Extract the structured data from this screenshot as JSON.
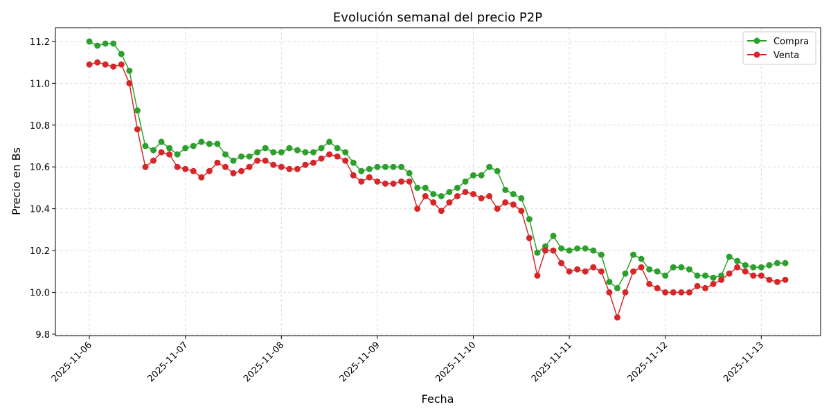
{
  "chart_data": {
    "type": "line",
    "title": "Evolución semanal del precio P2P",
    "xlabel": "Fecha",
    "ylabel": "Precio en Bs",
    "xlim": [
      "2025-11-05T15:30",
      "2025-11-13T14:50"
    ],
    "ylim": [
      9.793,
      11.266
    ],
    "x_ticks": [
      "2025-11-06",
      "2025-11-07",
      "2025-11-08",
      "2025-11-09",
      "2025-11-10",
      "2025-11-11",
      "2025-11-12",
      "2025-11-13"
    ],
    "y_ticks": [
      "9.8",
      "10.0",
      "10.2",
      "10.4",
      "10.6",
      "10.8",
      "11.0",
      "11.2"
    ],
    "grid": true,
    "legend_position": "top-right",
    "x": [
      "2025-11-06T00:00",
      "2025-11-06T02:00",
      "2025-11-06T04:00",
      "2025-11-06T06:00",
      "2025-11-06T08:00",
      "2025-11-06T10:00",
      "2025-11-06T12:00",
      "2025-11-06T14:00",
      "2025-11-06T16:00",
      "2025-11-06T18:00",
      "2025-11-06T20:00",
      "2025-11-06T22:00",
      "2025-11-07T00:00",
      "2025-11-07T02:00",
      "2025-11-07T04:00",
      "2025-11-07T06:00",
      "2025-11-07T08:00",
      "2025-11-07T10:00",
      "2025-11-07T12:00",
      "2025-11-07T14:00",
      "2025-11-07T16:00",
      "2025-11-07T18:00",
      "2025-11-07T20:00",
      "2025-11-07T22:00",
      "2025-11-08T00:00",
      "2025-11-08T02:00",
      "2025-11-08T04:00",
      "2025-11-08T06:00",
      "2025-11-08T08:00",
      "2025-11-08T10:00",
      "2025-11-08T12:00",
      "2025-11-08T14:00",
      "2025-11-08T16:00",
      "2025-11-08T18:00",
      "2025-11-08T20:00",
      "2025-11-08T22:00",
      "2025-11-09T00:00",
      "2025-11-09T02:00",
      "2025-11-09T04:00",
      "2025-11-09T06:00",
      "2025-11-09T08:00",
      "2025-11-09T10:00",
      "2025-11-09T12:00",
      "2025-11-09T14:00",
      "2025-11-09T16:00",
      "2025-11-09T18:00",
      "2025-11-09T20:00",
      "2025-11-09T22:00",
      "2025-11-10T00:00",
      "2025-11-10T02:00",
      "2025-11-10T04:00",
      "2025-11-10T06:00",
      "2025-11-10T08:00",
      "2025-11-10T10:00",
      "2025-11-10T12:00",
      "2025-11-10T14:00",
      "2025-11-10T16:00",
      "2025-11-10T18:00",
      "2025-11-10T20:00",
      "2025-11-10T22:00",
      "2025-11-11T00:00",
      "2025-11-11T02:00",
      "2025-11-11T04:00",
      "2025-11-11T06:00",
      "2025-11-11T08:00",
      "2025-11-11T10:00",
      "2025-11-11T12:00",
      "2025-11-11T14:00",
      "2025-11-11T16:00",
      "2025-11-11T18:00",
      "2025-11-11T20:00",
      "2025-11-11T22:00",
      "2025-11-12T00:00",
      "2025-11-12T02:00",
      "2025-11-12T04:00",
      "2025-11-12T06:00",
      "2025-11-12T08:00",
      "2025-11-12T10:00",
      "2025-11-12T12:00",
      "2025-11-12T14:00",
      "2025-11-12T16:00",
      "2025-11-12T18:00",
      "2025-11-12T20:00",
      "2025-11-12T22:00",
      "2025-11-13T00:00",
      "2025-11-13T02:00",
      "2025-11-13T04:00",
      "2025-11-13T06:00"
    ],
    "series": [
      {
        "name": "Compra",
        "color": "#2ca02c",
        "values": [
          11.2,
          11.18,
          11.19,
          11.19,
          11.14,
          11.06,
          10.87,
          10.7,
          10.68,
          10.72,
          10.69,
          10.66,
          10.69,
          10.7,
          10.72,
          10.71,
          10.71,
          10.66,
          10.63,
          10.65,
          10.65,
          10.67,
          10.69,
          10.67,
          10.67,
          10.69,
          10.68,
          10.67,
          10.67,
          10.69,
          10.72,
          10.69,
          10.67,
          10.62,
          10.58,
          10.59,
          10.6,
          10.6,
          10.6,
          10.6,
          10.57,
          10.5,
          10.5,
          10.47,
          10.46,
          10.48,
          10.5,
          10.53,
          10.56,
          10.56,
          10.6,
          10.58,
          10.49,
          10.47,
          10.45,
          10.35,
          10.19,
          10.22,
          10.27,
          10.21,
          10.2,
          10.21,
          10.21,
          10.2,
          10.18,
          10.05,
          10.02,
          10.09,
          10.18,
          10.16,
          10.11,
          10.1,
          10.08,
          10.12,
          10.12,
          10.11,
          10.08,
          10.08,
          10.07,
          10.08,
          10.17,
          10.15,
          10.13,
          10.12,
          10.12,
          10.13,
          10.14,
          10.14
        ]
      },
      {
        "name": "Venta",
        "color": "#d62728",
        "values": [
          11.09,
          11.1,
          11.09,
          11.08,
          11.09,
          11.0,
          10.78,
          10.6,
          10.63,
          10.67,
          10.66,
          10.6,
          10.59,
          10.58,
          10.55,
          10.58,
          10.62,
          10.6,
          10.57,
          10.58,
          10.6,
          10.63,
          10.63,
          10.61,
          10.6,
          10.59,
          10.59,
          10.61,
          10.62,
          10.64,
          10.66,
          10.65,
          10.63,
          10.56,
          10.53,
          10.55,
          10.53,
          10.52,
          10.52,
          10.53,
          10.53,
          10.4,
          10.46,
          10.43,
          10.39,
          10.43,
          10.46,
          10.48,
          10.47,
          10.45,
          10.46,
          10.4,
          10.43,
          10.42,
          10.39,
          10.26,
          10.08,
          10.2,
          10.2,
          10.14,
          10.1,
          10.11,
          10.1,
          10.12,
          10.1,
          10.0,
          9.88,
          10.0,
          10.1,
          10.12,
          10.04,
          10.02,
          10.0,
          10.0,
          10.0,
          10.0,
          10.03,
          10.02,
          10.04,
          10.06,
          10.09,
          10.12,
          10.1,
          10.08,
          10.08,
          10.06,
          10.05,
          10.06
        ]
      }
    ]
  }
}
